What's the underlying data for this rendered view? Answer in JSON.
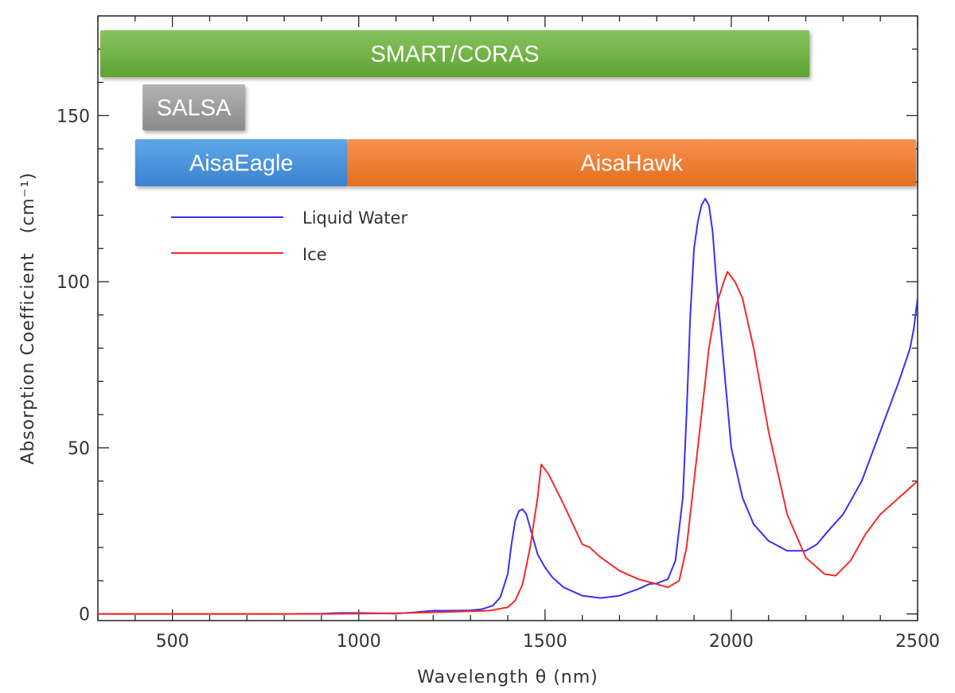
{
  "chart_data": {
    "type": "line",
    "xlabel": "Wavelength θ (nm)",
    "ylabel": "Absorption Coefficient",
    "ylabel_unit": "(cm⁻¹)",
    "xlim": [
      300,
      2500
    ],
    "ylim": [
      -2,
      180
    ],
    "xticks": [
      "500",
      "1000",
      "1500",
      "2000",
      "2500"
    ],
    "xtick_values": [
      500,
      1000,
      1500,
      2000,
      2500
    ],
    "yticks": [
      "0",
      "50",
      "100",
      "150"
    ],
    "ytick_values": [
      0,
      50,
      100,
      150
    ],
    "grid": false,
    "legend_position": "top-left",
    "series": [
      {
        "name": "Liquid Water",
        "color": "#3b2ff5",
        "x": [
          300,
          400,
          500,
          600,
          700,
          800,
          900,
          950,
          1000,
          1050,
          1100,
          1150,
          1200,
          1250,
          1300,
          1330,
          1360,
          1380,
          1400,
          1410,
          1420,
          1430,
          1440,
          1450,
          1460,
          1470,
          1480,
          1500,
          1520,
          1550,
          1600,
          1650,
          1700,
          1750,
          1780,
          1800,
          1830,
          1850,
          1870,
          1880,
          1890,
          1900,
          1910,
          1920,
          1930,
          1940,
          1950,
          1960,
          1980,
          2000,
          2030,
          2060,
          2100,
          2150,
          2200,
          2230,
          2260,
          2300,
          2350,
          2400,
          2450,
          2480,
          2490,
          2500
        ],
        "y": [
          0,
          0,
          0,
          0,
          0,
          0,
          0.1,
          0.3,
          0.3,
          0.2,
          0.1,
          0.5,
          1.0,
          1.0,
          1.1,
          1.4,
          2.5,
          5,
          12,
          21,
          28,
          31,
          31.5,
          30,
          26,
          22,
          18,
          14,
          11,
          8,
          5.5,
          4.8,
          5.5,
          7.5,
          9,
          9.2,
          10.5,
          16,
          35,
          60,
          90,
          110,
          118,
          123,
          125,
          123,
          115,
          100,
          75,
          50,
          35,
          27,
          22,
          19,
          19,
          21,
          25,
          30,
          40,
          55,
          70,
          80,
          86,
          95
        ]
      },
      {
        "name": "Ice",
        "color": "#f42a2a",
        "x": [
          300,
          400,
          500,
          600,
          700,
          800,
          900,
          1000,
          1100,
          1200,
          1300,
          1350,
          1400,
          1420,
          1440,
          1460,
          1480,
          1490,
          1510,
          1550,
          1600,
          1620,
          1650,
          1700,
          1750,
          1800,
          1830,
          1860,
          1880,
          1900,
          1920,
          1940,
          1960,
          1980,
          1990,
          2010,
          2030,
          2060,
          2100,
          2150,
          2200,
          2250,
          2280,
          2320,
          2360,
          2400,
          2450,
          2500
        ],
        "y": [
          0,
          0,
          0,
          0,
          0,
          0,
          0,
          0.1,
          0.2,
          0.5,
          0.8,
          1.0,
          2,
          4,
          9,
          20,
          35,
          45,
          42,
          33,
          21,
          20,
          17,
          13,
          10.5,
          9,
          8,
          10,
          20,
          40,
          60,
          80,
          93,
          100,
          103,
          100,
          95,
          80,
          55,
          30,
          17,
          12,
          11.5,
          16,
          24,
          30,
          35,
          40
        ]
      }
    ],
    "bands": [
      {
        "label": "SMART/CORAS",
        "color": "#70ad47",
        "xstart": 300,
        "xend": 2210,
        "row": 1
      },
      {
        "label": "SALSA",
        "color": "#9a9a9a",
        "xstart": 420,
        "xend": 695,
        "row": 2
      },
      {
        "label": "AisaEagle",
        "color": "#4a90d9",
        "xstart": 400,
        "xend": 970,
        "row": 3
      },
      {
        "label": "AisaHawk",
        "color": "#ed7d31",
        "xstart": 970,
        "xend": 2500,
        "row": 3
      }
    ]
  }
}
